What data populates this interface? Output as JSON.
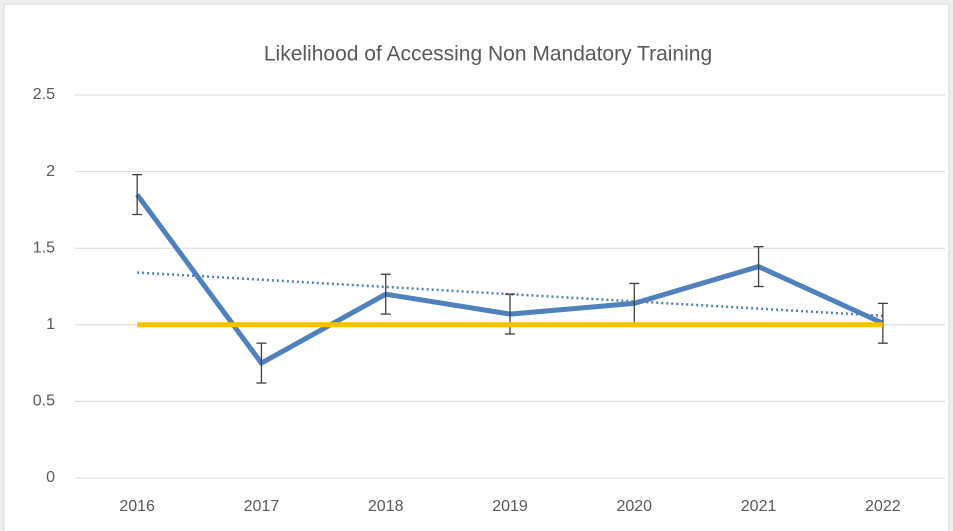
{
  "chart_data": {
    "type": "line",
    "title": "Likelihood of Accessing Non Mandatory Training",
    "categories": [
      "2016",
      "2017",
      "2018",
      "2019",
      "2020",
      "2021",
      "2022"
    ],
    "series": [
      {
        "color": "#4f81bd",
        "values": [
          1.85,
          0.75,
          1.2,
          1.07,
          1.14,
          1.38,
          1.01
        ],
        "errors": [
          0.13,
          0.13,
          0.13,
          0.13,
          0.13,
          0.13,
          0.13
        ],
        "trendline": "linear"
      },
      {
        "color": "#ffc000",
        "values": [
          1,
          1,
          1,
          1,
          1,
          1,
          1
        ]
      }
    ],
    "ylim": [
      0,
      2.5
    ],
    "yticks": [
      0,
      0.5,
      1,
      1.5,
      2,
      2.5
    ],
    "grid": true
  }
}
